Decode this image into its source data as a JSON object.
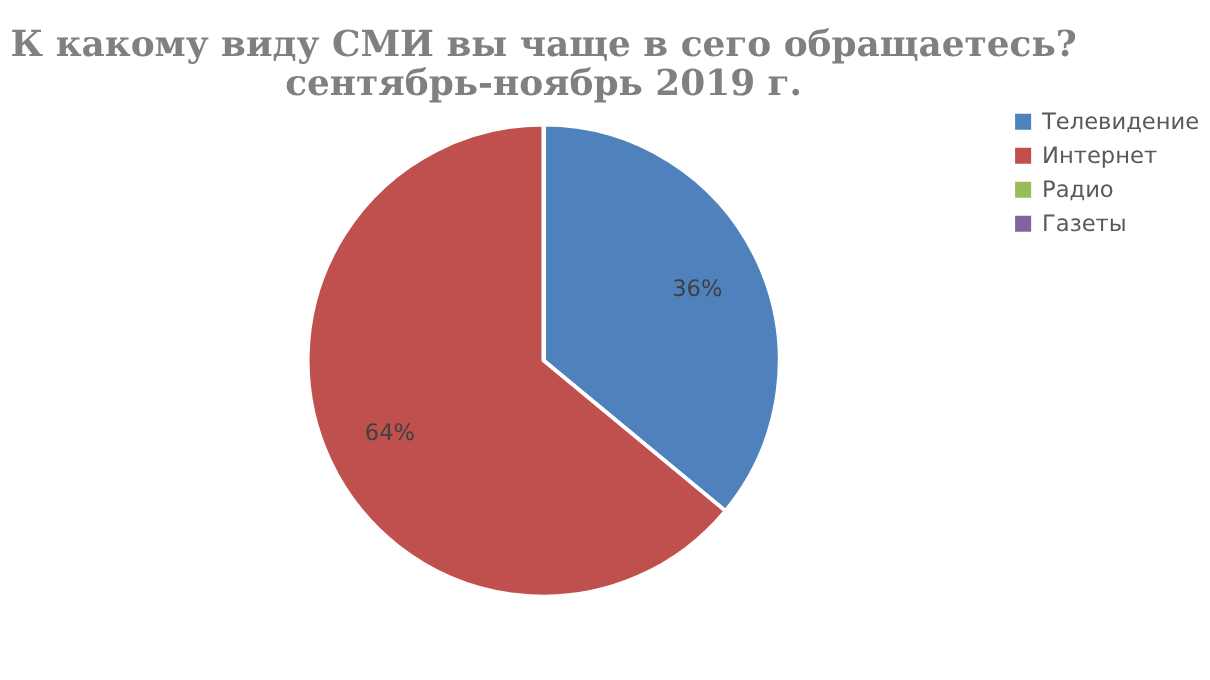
{
  "chart_data": {
    "type": "pie",
    "title": [
      "К какому виду СМИ вы чаще в сего обращаетесь?",
      "сентябрь-ноябрь 2019 г."
    ],
    "categories": [
      "Телевидение",
      "Интернет",
      "Радио",
      "Газеты"
    ],
    "values": [
      36,
      64,
      0,
      0
    ],
    "colors": [
      "#4f81bd",
      "#c0504d",
      "#9bbb59",
      "#8064a2"
    ],
    "value_labels": [
      "36%",
      "64%",
      null,
      null
    ],
    "legend": "right"
  }
}
